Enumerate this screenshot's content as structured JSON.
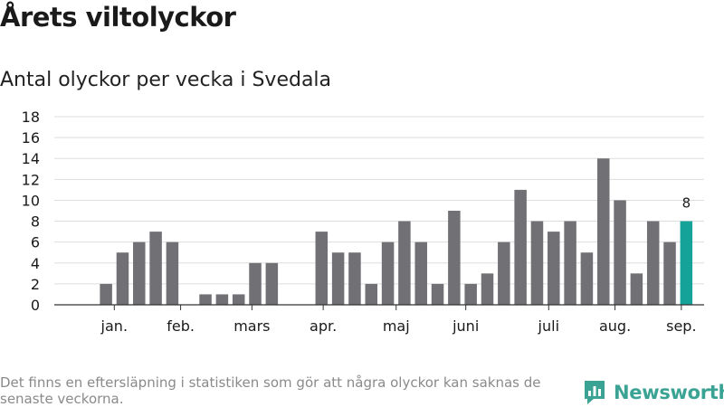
{
  "header": {
    "title": "Årets viltolyckor",
    "subtitle": "Antal olyckor per vecka i Svedala"
  },
  "footer": {
    "note": "Det finns en eftersläpning i statistiken som gör att några olyckor kan saknas de senaste veckorna.",
    "brand": "Newsworthy",
    "brand_icon": "newsworthy-logo-icon"
  },
  "colors": {
    "bar": "#707075",
    "highlight": "#15a399",
    "grid": "#dddddd",
    "axis": "#333333",
    "brand": "#3aa394"
  },
  "chart_data": {
    "type": "bar",
    "title": "Antal olyckor per vecka i Svedala",
    "xlabel": "",
    "ylabel": "",
    "ylim": [
      0,
      18
    ],
    "yticks": [
      0,
      2,
      4,
      6,
      8,
      10,
      12,
      14,
      16,
      18
    ],
    "grid": true,
    "weeks": [
      1,
      2,
      3,
      4,
      5,
      6,
      7,
      8,
      9,
      10,
      11,
      12,
      13,
      14,
      15,
      16,
      17,
      18,
      19,
      20,
      21,
      22,
      23,
      24,
      25,
      26,
      27,
      28,
      29,
      30,
      31,
      32,
      33,
      34,
      35,
      36,
      37,
      38,
      39
    ],
    "values": [
      0,
      0,
      2,
      5,
      6,
      7,
      6,
      0,
      1,
      1,
      1,
      4,
      4,
      0,
      0,
      7,
      5,
      5,
      2,
      6,
      8,
      6,
      2,
      9,
      2,
      3,
      6,
      11,
      8,
      7,
      8,
      5,
      14,
      10,
      3,
      8,
      6,
      8,
      0
    ],
    "highlight_week": 38,
    "data_labels": [
      {
        "week": 38,
        "label": "8"
      }
    ],
    "month_labels": [
      {
        "label": "jan.",
        "week": 3.5
      },
      {
        "label": "feb.",
        "week": 7.5
      },
      {
        "label": "mars",
        "week": 11.8
      },
      {
        "label": "apr.",
        "week": 16.1
      },
      {
        "label": "maj",
        "week": 20.5
      },
      {
        "label": "juni",
        "week": 24.7
      },
      {
        "label": "juli",
        "week": 29.7
      },
      {
        "label": "aug.",
        "week": 33.7
      },
      {
        "label": "sep.",
        "week": 37.7
      }
    ]
  }
}
